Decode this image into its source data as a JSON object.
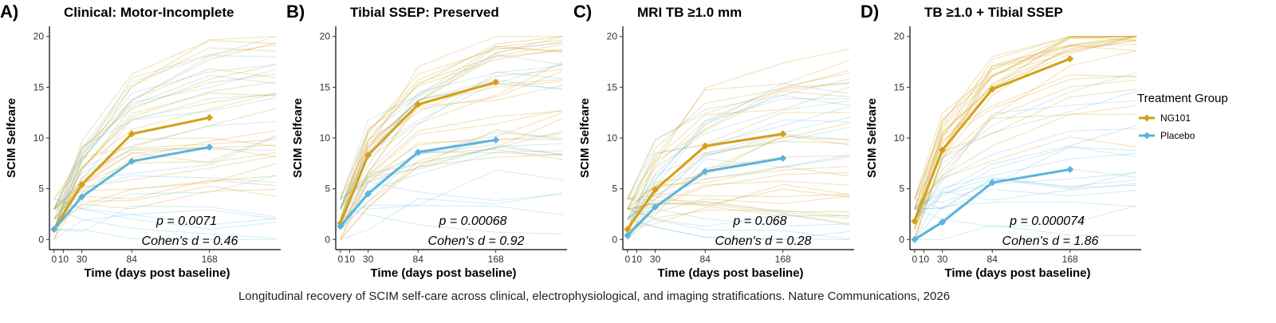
{
  "caption": "Longitudinal recovery of SCIM self-care across clinical, electrophysiological, and imaging stratifications. Nature Communications, 2026",
  "colors": {
    "ng101": "#D4A017",
    "placebo": "#5AB4DC",
    "axis": "#000000"
  },
  "legend": {
    "title": "Treatment Group",
    "items": [
      {
        "name": "NG101",
        "color": "#D4A017"
      },
      {
        "name": "Placebo",
        "color": "#5AB4DC"
      }
    ]
  },
  "chart_data": [
    {
      "type": "line",
      "letter": "A)",
      "title": "Clinical: Motor-Incomplete",
      "xlabel": "Time (days post baseline)",
      "ylabel": "SCIM Selfcare",
      "xticks": [
        0,
        10,
        30,
        84,
        168
      ],
      "yticks": [
        0,
        5,
        10,
        15,
        20
      ],
      "xlim": [
        -5,
        245
      ],
      "ylim": [
        -1,
        21
      ],
      "p_value": "p = 0.0071",
      "effect_size": "Cohen's d = 0.46",
      "x": [
        0,
        30,
        84,
        168
      ],
      "series": [
        {
          "name": "NG101",
          "values": [
            1.0,
            5.4,
            10.4,
            12.0
          ]
        },
        {
          "name": "Placebo",
          "values": [
            1.0,
            4.2,
            7.7,
            9.1
          ]
        }
      ]
    },
    {
      "type": "line",
      "letter": "B)",
      "title": "Tibial SSEP: Preserved",
      "xlabel": "Time (days post baseline)",
      "ylabel": "SCIM Selfcare",
      "xticks": [
        0,
        10,
        30,
        84,
        168
      ],
      "yticks": [
        0,
        5,
        10,
        15,
        20
      ],
      "xlim": [
        -5,
        245
      ],
      "ylim": [
        -1,
        21
      ],
      "p_value": "p = 0.00068",
      "effect_size": "Cohen's d = 0.92",
      "x": [
        0,
        30,
        84,
        168
      ],
      "series": [
        {
          "name": "NG101",
          "values": [
            1.6,
            8.3,
            13.3,
            15.5
          ]
        },
        {
          "name": "Placebo",
          "values": [
            1.3,
            4.5,
            8.6,
            9.8
          ]
        }
      ]
    },
    {
      "type": "line",
      "letter": "C)",
      "title": "MRI TB ≥1.0 mm",
      "xlabel": "Time (days post baseline)",
      "ylabel": "SCIM Selfcare",
      "xticks": [
        0,
        10,
        30,
        84,
        168
      ],
      "yticks": [
        0,
        5,
        10,
        15,
        20
      ],
      "xlim": [
        -5,
        245
      ],
      "ylim": [
        -1,
        21
      ],
      "p_value": "p = 0.068",
      "effect_size": "Cohen's d = 0.28",
      "x": [
        0,
        30,
        84,
        168
      ],
      "series": [
        {
          "name": "NG101",
          "values": [
            1.0,
            4.9,
            9.2,
            10.4
          ]
        },
        {
          "name": "Placebo",
          "values": [
            0.4,
            3.2,
            6.7,
            8.0
          ]
        }
      ]
    },
    {
      "type": "line",
      "letter": "D)",
      "title": "TB ≥1.0 + Tibial SSEP",
      "xlabel": "Time (days post baseline)",
      "ylabel": "SCIM Selfcare",
      "xticks": [
        0,
        10,
        30,
        84,
        168
      ],
      "yticks": [
        0,
        5,
        10,
        15,
        20
      ],
      "xlim": [
        -5,
        245
      ],
      "ylim": [
        -1,
        21
      ],
      "p_value": "p = 0.000074",
      "effect_size": "Cohen's d = 1.86",
      "x": [
        0,
        30,
        84,
        168
      ],
      "series": [
        {
          "name": "NG101",
          "values": [
            1.8,
            8.8,
            14.8,
            17.8
          ]
        },
        {
          "name": "Placebo",
          "values": [
            0.0,
            1.7,
            5.6,
            6.9
          ]
        }
      ]
    }
  ]
}
